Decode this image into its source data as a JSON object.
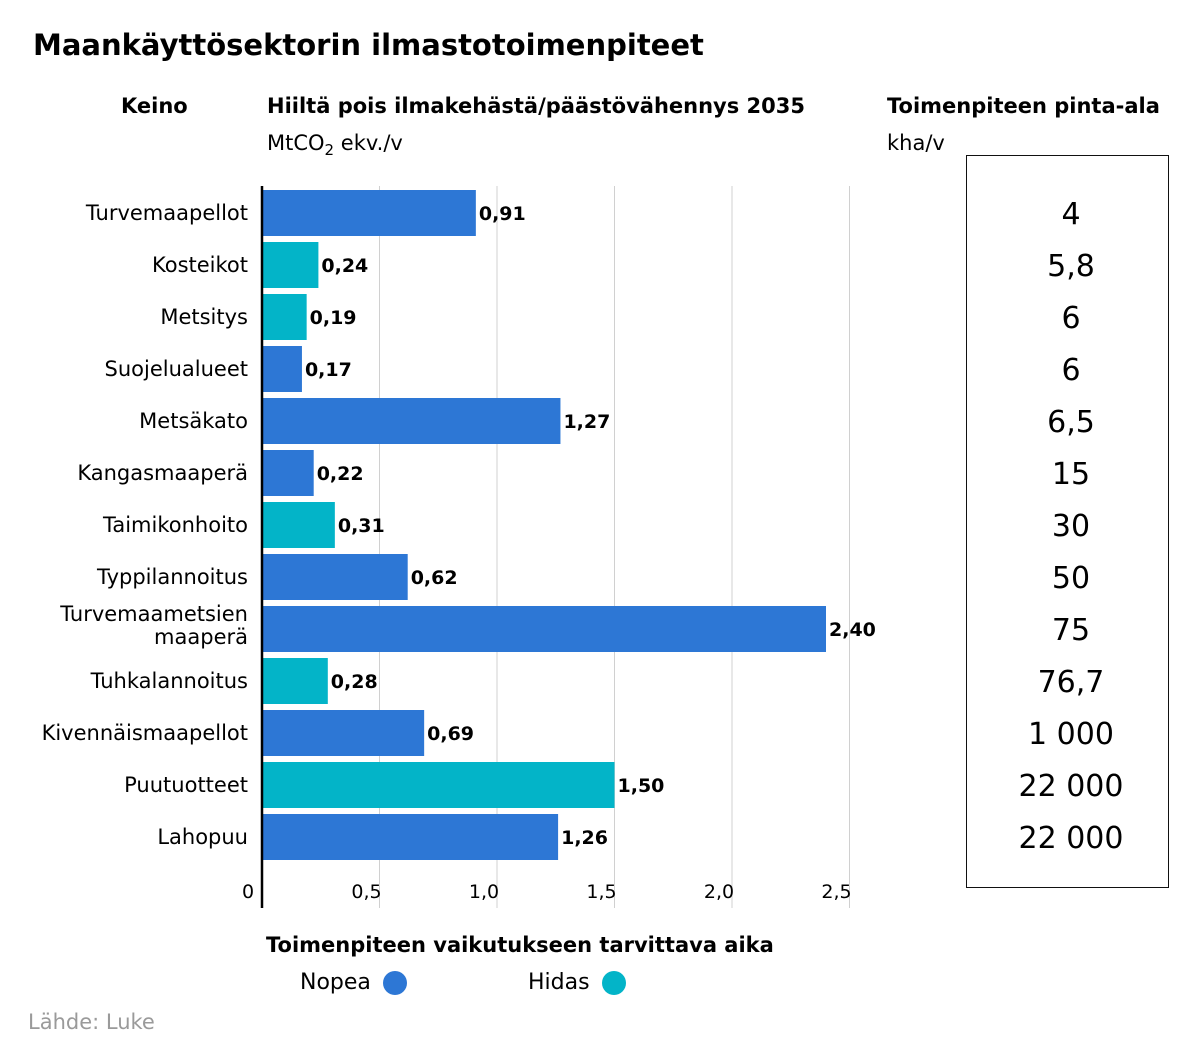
{
  "title": "Maankäyttösektorin ilmastotoimenpiteet",
  "headers": {
    "keino": "Keino",
    "carbon": "Hiiltä pois ilmakehästä/päästövähennys 2035",
    "carbon_unit_pre": "MtCO",
    "carbon_unit_sub": "2",
    "carbon_unit_post": " ekv./v",
    "area": "Toimenpiteen pinta-ala",
    "area_unit": "kha/v"
  },
  "colors": {
    "nopea": "#2d77d5",
    "hidas": "#03b4c8"
  },
  "chart_data": {
    "type": "bar",
    "orientation": "horizontal",
    "categories": [
      "Turvemaapellot",
      "Kosteikot",
      "Metsitys",
      "Suojelualueet",
      "Metsäkato",
      "Kangasmaaperä",
      "Taimikonhoito",
      "Typpilannoitus",
      "Turvemaametsien maaperä",
      "Tuhkalannoitus",
      "Kivennäismaapellot",
      "Puutuotteet",
      "Lahopuu"
    ],
    "values": [
      0.91,
      0.24,
      0.19,
      0.17,
      1.27,
      0.22,
      0.31,
      0.62,
      2.4,
      0.28,
      0.69,
      1.5,
      1.26
    ],
    "value_labels": [
      "0,91",
      "0,24",
      "0,19",
      "0,17",
      "1,27",
      "0,22",
      "0,31",
      "0,62",
      "2,40",
      "0,28",
      "0,69",
      "1,50",
      "1,26"
    ],
    "speed": [
      "nopea",
      "hidas",
      "hidas",
      "nopea",
      "nopea",
      "nopea",
      "hidas",
      "nopea",
      "nopea",
      "hidas",
      "nopea",
      "hidas",
      "nopea"
    ],
    "xlim": [
      0,
      2.5
    ],
    "xticks": [
      0,
      0.5,
      1.0,
      1.5,
      2.0,
      2.5
    ],
    "xtick_labels": [
      "0",
      "0,5",
      "1,0",
      "1,5",
      "2,0",
      "2,5"
    ],
    "grid": true
  },
  "areas": [
    "4",
    "5,8",
    "6",
    "6",
    "6,5",
    "15",
    "30",
    "50",
    "75",
    "76,7",
    "1 000",
    "22 000",
    "22 000"
  ],
  "legend": {
    "title": "Toimenpiteen vaikutukseen tarvittava aika",
    "nopea": "Nopea",
    "hidas": "Hidas"
  },
  "source": "Lähde: Luke"
}
